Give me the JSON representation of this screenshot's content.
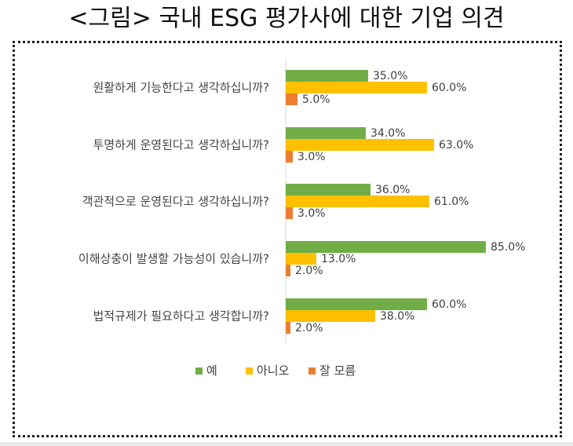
{
  "title": "<그림> 국내 ESG 평가사에 대한 기업 의견",
  "chart_data": {
    "type": "bar",
    "orientation": "horizontal",
    "categories": [
      "원활하게 기능한다고 생각하십니까?",
      "투명하게 운영된다고 생각하십니까?",
      "객관적으로 운영된다고 생각하십니까?",
      "이해상충이 발생할 가능성이 있습니까?",
      "법적규제가 필요하다고 생각합니까?"
    ],
    "series": [
      {
        "name": "예",
        "color": "#70ad47",
        "values": [
          35.0,
          34.0,
          36.0,
          85.0,
          60.0
        ],
        "labels": [
          "35.0%",
          "34.0%",
          "36.0%",
          "85.0%",
          "60.0%"
        ]
      },
      {
        "name": "아니오",
        "color": "#ffc000",
        "values": [
          60.0,
          63.0,
          61.0,
          13.0,
          38.0
        ],
        "labels": [
          "60.0%",
          "63.0%",
          "61.0%",
          "13.0%",
          "38.0%"
        ]
      },
      {
        "name": "잘 모름",
        "color": "#ed7d31",
        "values": [
          5.0,
          3.0,
          3.0,
          2.0,
          2.0
        ],
        "labels": [
          "5.0%",
          "3.0%",
          "3.0%",
          "2.0%",
          "2.0%"
        ]
      }
    ],
    "xlim": [
      0,
      100
    ],
    "legend_position": "bottom",
    "grid": false
  }
}
